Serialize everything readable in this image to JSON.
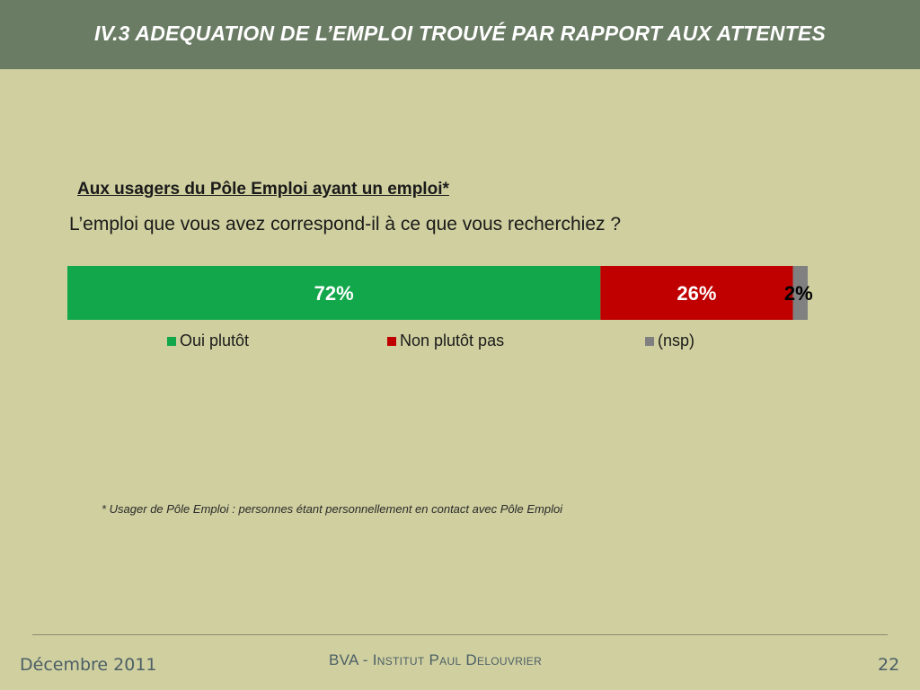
{
  "header": {
    "title": "IV.3 ADEQUATION DE L’EMPLOI TROUVÉ PAR RAPPORT AUX ATTENTES"
  },
  "subtitle": "Aux usagers du Pôle Emploi ayant un emploi*",
  "question": "L’emploi que vous avez correspond-il  à ce que vous recherchiez ?",
  "chart_data": {
    "type": "bar",
    "stacked": true,
    "orientation": "horizontal",
    "series": [
      {
        "name": "Oui plutôt",
        "value": 72,
        "label": "72%",
        "color": "#12a74b",
        "label_color": "#ffffff"
      },
      {
        "name": "Non plutôt pas",
        "value": 26,
        "label": "26%",
        "color": "#c00000",
        "label_color": "#ffffff"
      },
      {
        "name": "(nsp)",
        "value": 2,
        "label": "2%",
        "color": "#808080",
        "label_color": "#000000"
      }
    ],
    "total": 100,
    "legend_position": "bottom"
  },
  "footnote": "* Usager de Pôle Emploi : personnes étant personnellement en contact avec Pôle Emploi",
  "footer": {
    "date": "Décembre 2011",
    "org": "BVA - Institut Paul Delouvrier",
    "page": "22"
  }
}
